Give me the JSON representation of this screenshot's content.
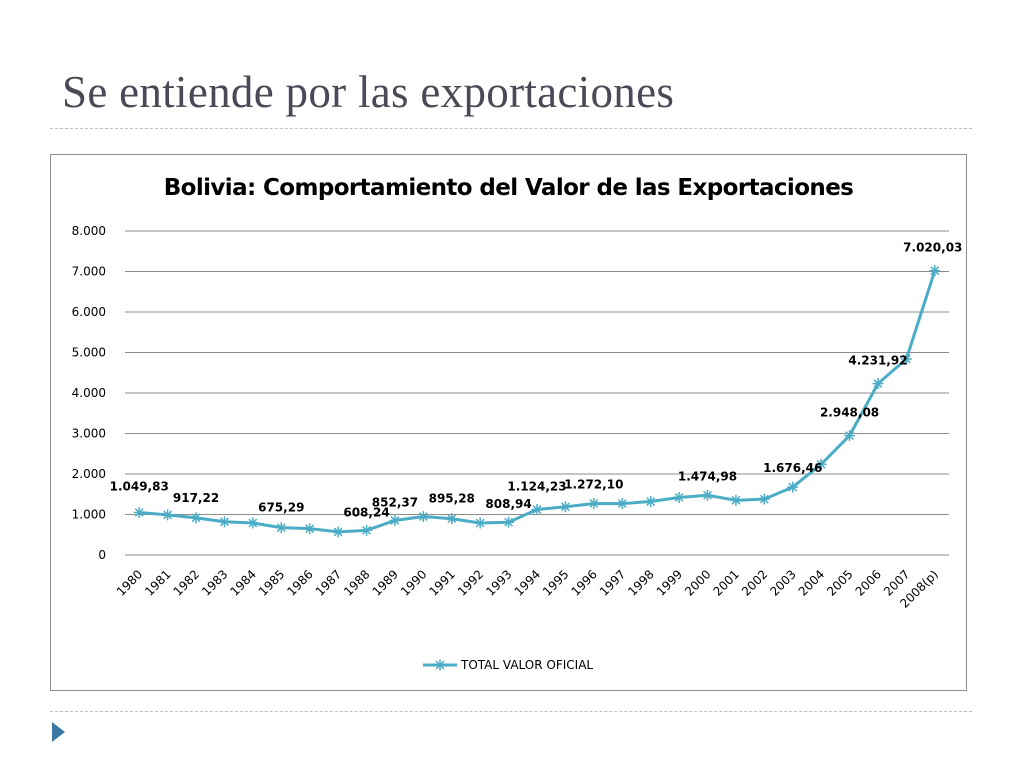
{
  "slide": {
    "title": "Se entiende por las exportaciones"
  },
  "colors": {
    "series_line": "#4bacc6",
    "grid": "#8c8c8c",
    "title_text": "#4a4a57",
    "bullet": "#3d7aa3"
  },
  "icons": {
    "bullet": "triangle-bullet-icon"
  },
  "chart_data": {
    "type": "line",
    "title": "Bolivia: Comportamiento del Valor de las Exportaciones",
    "xlabel": "",
    "ylabel": "",
    "ylim": [
      0,
      8000
    ],
    "y_ticks": [
      0,
      1000,
      2000,
      3000,
      4000,
      5000,
      6000,
      7000,
      8000
    ],
    "y_tick_labels": [
      "0",
      "1.000",
      "2.000",
      "3.000",
      "4.000",
      "5.000",
      "6.000",
      "7.000",
      "8.000"
    ],
    "grid": true,
    "legend_position": "bottom",
    "categories": [
      "1980",
      "1981",
      "1982",
      "1983",
      "1984",
      "1985",
      "1986",
      "1987",
      "1988",
      "1989",
      "1990",
      "1991",
      "1992",
      "1993",
      "1994",
      "1995",
      "1996",
      "1997",
      "1998",
      "1999",
      "2000",
      "2001",
      "2002",
      "2003",
      "2004",
      "2005",
      "2006",
      "2007",
      "2008(p)"
    ],
    "series": [
      {
        "name": "TOTAL VALOR OFICIAL",
        "marker": "asterisk",
        "values": [
          1049.83,
          990,
          917.22,
          820,
          790,
          675.29,
          650,
          570,
          608.24,
          852.37,
          950,
          895.28,
          790,
          808.94,
          1124.23,
          1190,
          1272.1,
          1270,
          1320,
          1420,
          1474.98,
          1350,
          1380,
          1676.46,
          2240,
          2948.08,
          4231.92,
          4840,
          7020.03
        ],
        "data_labels": [
          {
            "index": 0,
            "text": "1.049,83"
          },
          {
            "index": 2,
            "text": "917,22"
          },
          {
            "index": 5,
            "text": "675,29"
          },
          {
            "index": 8,
            "text": "608,24"
          },
          {
            "index": 9,
            "text": "852,37"
          },
          {
            "index": 11,
            "text": "895,28"
          },
          {
            "index": 13,
            "text": "808,94"
          },
          {
            "index": 14,
            "text": "1.124,23"
          },
          {
            "index": 16,
            "text": "1.272,10"
          },
          {
            "index": 20,
            "text": "1.474,98"
          },
          {
            "index": 23,
            "text": "1.676,46"
          },
          {
            "index": 25,
            "text": "2.948,08"
          },
          {
            "index": 26,
            "text": "4.231,92"
          },
          {
            "index": 28,
            "text": "7.020,03"
          }
        ]
      }
    ]
  }
}
